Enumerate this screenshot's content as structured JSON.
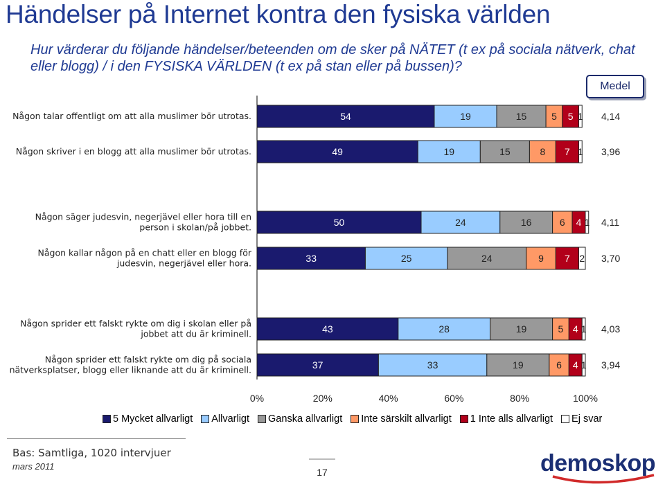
{
  "title": "Händelser på Internet kontra den fysiska världen",
  "subtitle": "Hur värderar du följande händelser/beteenden om de sker på NÄTET (t ex på sociala nätverk, chat eller blogg) / i den FYSISKA VÄRLDEN (t ex på stan eller på bussen)?",
  "medel_label": "Medel",
  "footer": {
    "base": "Bas: Samtliga, 1020 intervjuer",
    "date": "mars 2011",
    "page": "17",
    "logo": "demoskop"
  },
  "colors": {
    "dark_blue": "#1a1a6e",
    "light_blue": "#99ccff",
    "gray": "#999999",
    "salmon": "#ff9966",
    "dark_red": "#b2001a",
    "white": "#ffffff"
  },
  "chart_data": {
    "type": "bar",
    "orientation": "horizontal-stacked-100",
    "xlim": [
      0,
      100
    ],
    "x_ticks": [
      "0%",
      "20%",
      "40%",
      "60%",
      "80%",
      "100%"
    ],
    "series": [
      {
        "name": "5 Mycket allvarligt",
        "color": "#1a1a6e"
      },
      {
        "name": "Allvarligt",
        "color": "#99ccff"
      },
      {
        "name": "Ganska allvarligt",
        "color": "#999999"
      },
      {
        "name": "Inte särskilt allvarligt",
        "color": "#ff9966"
      },
      {
        "name": "1 Inte alls allvarligt",
        "color": "#b2001a"
      },
      {
        "name": "Ej svar",
        "color": "#ffffff"
      }
    ],
    "categories": [
      {
        "label": [
          "Någon talar offentligt om att alla muslimer bör utrotas."
        ],
        "values": [
          54,
          19,
          15,
          5,
          5,
          1
        ],
        "mean": "4,14"
      },
      {
        "label": [
          "Någon skriver i en blogg att alla muslimer bör utrotas."
        ],
        "values": [
          49,
          19,
          15,
          8,
          7,
          1
        ],
        "mean": "3,96"
      },
      {
        "label": [
          "Någon säger judesvin, negerjävel eller hora till en",
          "person i skolan/på jobbet."
        ],
        "values": [
          50,
          24,
          16,
          6,
          4,
          1
        ],
        "mean": "4,11"
      },
      {
        "label": [
          "Någon kallar någon på en chatt eller en blogg för",
          "judesvin, negerjävel eller hora."
        ],
        "values": [
          33,
          25,
          24,
          9,
          7,
          2
        ],
        "mean": "3,70"
      },
      {
        "label": [
          "Någon sprider ett falskt rykte om dig i skolan eller på",
          "jobbet att du är kriminell."
        ],
        "values": [
          43,
          28,
          19,
          5,
          4,
          1
        ],
        "mean": "4,03"
      },
      {
        "label": [
          "Någon sprider ett falskt rykte om dig på sociala",
          "nätverksplatser, blogg eller liknande att du är kriminell."
        ],
        "values": [
          37,
          33,
          19,
          6,
          4,
          1
        ],
        "mean": "3,94"
      }
    ]
  }
}
